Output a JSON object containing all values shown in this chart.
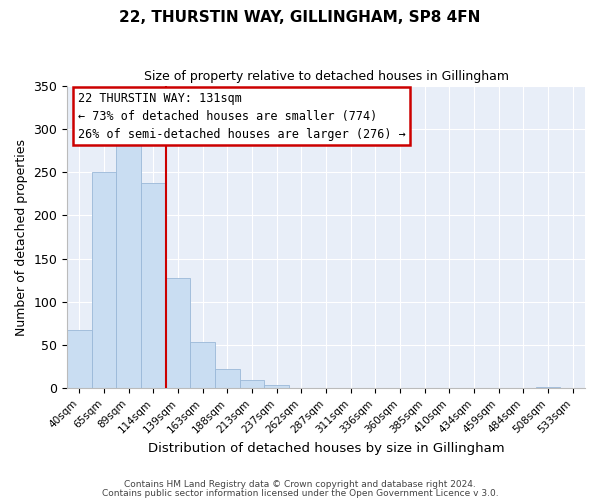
{
  "title": "22, THURSTIN WAY, GILLINGHAM, SP8 4FN",
  "subtitle": "Size of property relative to detached houses in Gillingham",
  "xlabel": "Distribution of detached houses by size in Gillingham",
  "ylabel": "Number of detached properties",
  "bar_labels": [
    "40sqm",
    "65sqm",
    "89sqm",
    "114sqm",
    "139sqm",
    "163sqm",
    "188sqm",
    "213sqm",
    "237sqm",
    "262sqm",
    "287sqm",
    "311sqm",
    "336sqm",
    "360sqm",
    "385sqm",
    "410sqm",
    "434sqm",
    "459sqm",
    "484sqm",
    "508sqm",
    "533sqm"
  ],
  "bar_values": [
    68,
    250,
    287,
    237,
    128,
    54,
    22,
    10,
    4,
    0,
    0,
    0,
    0,
    0,
    0,
    0,
    0,
    0,
    0,
    2,
    0
  ],
  "bar_color": "#c9ddf2",
  "bar_edgecolor": "#9ab8d8",
  "vline_color": "#cc0000",
  "vline_index": 4,
  "ylim": [
    0,
    350
  ],
  "yticks": [
    0,
    50,
    100,
    150,
    200,
    250,
    300,
    350
  ],
  "annotation_title": "22 THURSTIN WAY: 131sqm",
  "annotation_line1": "← 73% of detached houses are smaller (774)",
  "annotation_line2": "26% of semi-detached houses are larger (276) →",
  "annotation_box_color": "#ffffff",
  "annotation_box_edgecolor": "#cc0000",
  "footer1": "Contains HM Land Registry data © Crown copyright and database right 2024.",
  "footer2": "Contains public sector information licensed under the Open Government Licence v 3.0.",
  "plot_bg": "#e8eef8",
  "fig_bg": "#ffffff"
}
